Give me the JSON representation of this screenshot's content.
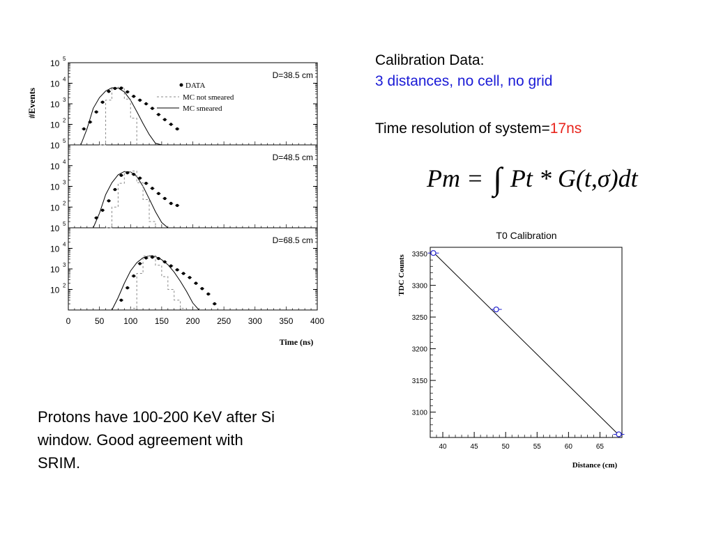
{
  "calibration": {
    "title": "Calibration Data:",
    "subtitle": "3 distances, no cell, no grid",
    "resolution_label": "Time resolution of system=",
    "resolution_value": "17ns",
    "formula": {
      "lhs": "Pm =",
      "rhs": "Pt * G(t,σ)dt"
    }
  },
  "protons_text": "Protons have 100-200 KeV after Si window.  Good agreement with SRIM.",
  "colors": {
    "blue": "#1a1ad6",
    "red": "#e8241c",
    "t0_marker": "#2222cc"
  },
  "chart_data": [
    {
      "type": "scatter",
      "title": "",
      "xlabel": "Time (ns)",
      "ylabel": "#Events",
      "log_y": true,
      "xlim": [
        0,
        400
      ],
      "ylim": [
        10,
        100000
      ],
      "x_ticks": [
        "0",
        "50",
        "100",
        "150",
        "200",
        "250",
        "300",
        "350",
        "400"
      ],
      "y_tick_labels": [
        {
          "base": "10",
          "exp": "5"
        },
        {
          "base": "10",
          "exp": "4"
        },
        {
          "base": "10",
          "exp": "3"
        },
        {
          "base": "10",
          "exp": "2"
        }
      ],
      "legend": {
        "placement": "top-right",
        "entries": [
          "DATA",
          "MC not smeared",
          "MC smeared"
        ]
      },
      "panels": [
        {
          "label": "D=38.5 cm",
          "data": {
            "x": [
              25,
              35,
              45,
              55,
              65,
              75,
              85,
              95,
              105,
              115,
              125,
              135,
              145,
              155,
              165,
              175
            ],
            "y": [
              60,
              130,
              400,
              1200,
              4000,
              5600,
              5800,
              3800,
              2300,
              1500,
              1000,
              600,
              300,
              170,
              100,
              60
            ]
          },
          "mc_not_smeared": {
            "edges": [
              50,
              60,
              70,
              80,
              90,
              100,
              110
            ],
            "values": [
              10,
              1500,
              5600,
              6400,
              1700,
              200
            ]
          },
          "mc_smeared": {
            "x": [
              20,
              30,
              40,
              50,
              60,
              70,
              80,
              90,
              100,
              110,
              120,
              130,
              140,
              150
            ],
            "y": [
              9,
              60,
              600,
              2000,
              4200,
              6000,
              5800,
              3800,
              1500,
              420,
              110,
              32,
              12,
              5
            ]
          }
        },
        {
          "label": "D=48.5 cm",
          "data": {
            "x": [
              45,
              55,
              65,
              75,
              85,
              95,
              105,
              115,
              125,
              135,
              145,
              155,
              165,
              175
            ],
            "y": [
              30,
              70,
              200,
              700,
              3400,
              4500,
              3800,
              2500,
              1400,
              800,
              450,
              260,
              150,
              120
            ]
          },
          "mc_not_smeared": {
            "edges": [
              60,
              70,
              80,
              90,
              100,
              110,
              120,
              130,
              140
            ],
            "values": [
              10,
              100,
              1400,
              5000,
              5500,
              1500,
              230,
              20
            ]
          },
          "mc_smeared": {
            "x": [
              40,
              50,
              60,
              70,
              80,
              90,
              100,
              110,
              120,
              130,
              140,
              150,
              160
            ],
            "y": [
              9,
              50,
              400,
              1500,
              3600,
              5200,
              5000,
              3000,
              1000,
              250,
              60,
              18,
              6
            ]
          }
        },
        {
          "label": "D=68.5 cm",
          "data": {
            "x": [
              85,
              95,
              105,
              115,
              125,
              135,
              145,
              155,
              165,
              175,
              185,
              195,
              205,
              215,
              225,
              235
            ],
            "y": [
              30,
              120,
              450,
              1800,
              3400,
              3700,
              3200,
              2200,
              1400,
              900,
              600,
              380,
              200,
              110,
              60,
              20
            ]
          },
          "mc_not_smeared": {
            "edges": [
              100,
              110,
              120,
              130,
              140,
              150,
              160,
              170,
              180,
              190
            ],
            "values": [
              12,
              600,
              4200,
              4600,
              1500,
              420,
              100,
              30,
              12
            ]
          },
          "mc_smeared": {
            "x": [
              70,
              80,
              90,
              100,
              110,
              120,
              130,
              140,
              150,
              160,
              170,
              180,
              190,
              200,
              210
            ],
            "y": [
              8,
              40,
              200,
              800,
              2000,
              3500,
              4300,
              4000,
              2800,
              1600,
              700,
              250,
              80,
              22,
              7
            ]
          }
        }
      ]
    },
    {
      "type": "scatter",
      "title": "T0 Calibration",
      "xlabel": "Distance (cm)",
      "ylabel": "TDC Counts",
      "xlim": [
        38,
        68.5
      ],
      "ylim": [
        3060,
        3360
      ],
      "x_ticks": [
        "40",
        "45",
        "50",
        "55",
        "60",
        "65"
      ],
      "y_ticks": [
        "3350",
        "3300",
        "3250",
        "3200",
        "3150",
        "3100"
      ],
      "grid": false,
      "points": [
        {
          "x": 38.5,
          "y": 3351
        },
        {
          "x": 48.5,
          "y": 3262
        },
        {
          "x": 68.0,
          "y": 3065
        }
      ],
      "fit_line": {
        "x": [
          38.5,
          68.0
        ],
        "y": [
          3352,
          3064
        ]
      }
    }
  ]
}
